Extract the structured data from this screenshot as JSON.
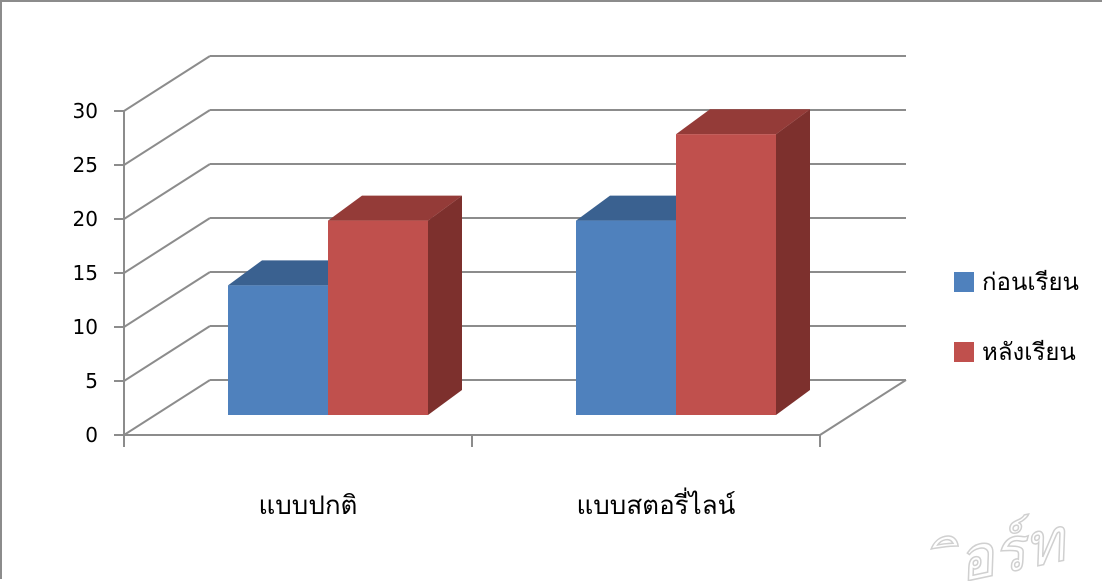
{
  "chart_data": {
    "type": "bar",
    "style": "3d-clustered-column",
    "categories": [
      "แบบปกติ",
      "แบบสตอรี่ไลน์"
    ],
    "series": [
      {
        "name": "ก่อนเรียน",
        "values": [
          12,
          18
        ],
        "color": "#4f81bd",
        "top_color": "#3a6190",
        "side_color": "#335683"
      },
      {
        "name": "หลังเรียน",
        "values": [
          18,
          26
        ],
        "color": "#c0504d",
        "top_color": "#943b38",
        "side_color": "#7d302d"
      }
    ],
    "ylim": [
      0,
      30
    ],
    "yticks": [
      0,
      5,
      10,
      15,
      20,
      25,
      30
    ],
    "grid": true,
    "legend": "right",
    "title": "",
    "xlabel": "",
    "ylabel": ""
  },
  "watermark": {
    "text": "ิอร์ท"
  }
}
